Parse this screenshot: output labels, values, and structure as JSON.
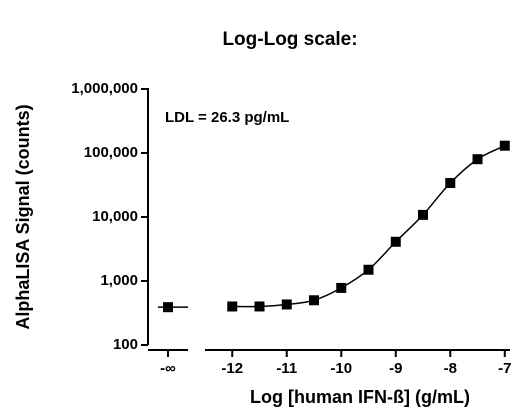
{
  "chart_data": {
    "type": "line",
    "title": "Log-Log scale:",
    "xlabel": "Log [human IFN-ß] (g/mL)",
    "ylabel": "AlphaLISA Signal (counts)",
    "annotation": "LDL = 26.3 pg/mL",
    "y_log": true,
    "color": "#000000",
    "xlim": [
      -12.5,
      -6.95
    ],
    "xticks": [
      -12,
      -11,
      -10,
      -9,
      -8,
      -7
    ],
    "ylim": [
      100,
      1000000
    ],
    "yticks": [
      100,
      {
        "value": 1000,
        "label": "1,000"
      },
      {
        "value": 10000,
        "label": "10,000"
      },
      {
        "value": 100000,
        "label": "100,000"
      },
      {
        "value": 1000000,
        "label": "1,000,000"
      }
    ],
    "blank": {
      "label": "-∞",
      "value": 390
    },
    "x": [
      -12,
      -11.5,
      -11,
      -10.5,
      -10,
      -9.5,
      -9,
      -8.5,
      -8,
      -7.5,
      -7
    ],
    "values": [
      400,
      400,
      430,
      500,
      780,
      1500,
      4100,
      10800,
      34000,
      80000,
      130000
    ]
  }
}
